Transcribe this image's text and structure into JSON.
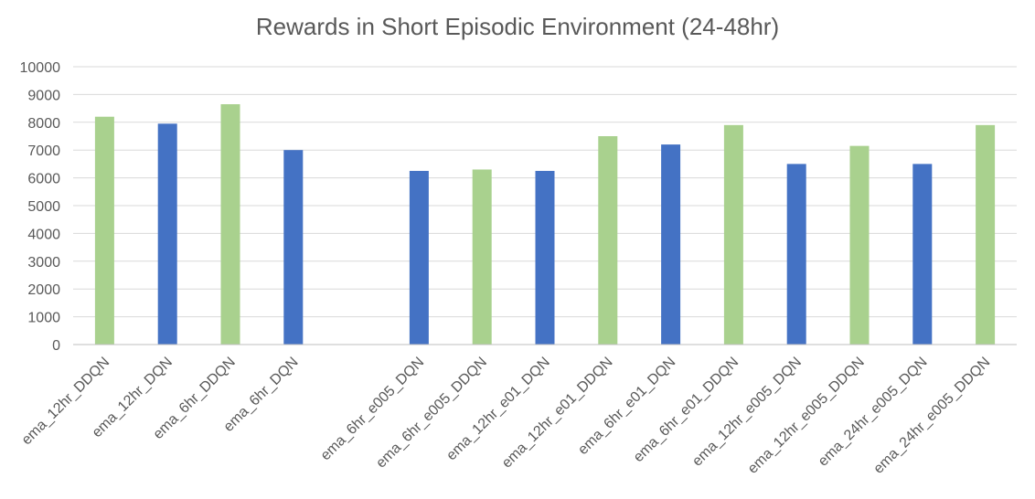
{
  "chart_data": {
    "type": "bar",
    "title": "Rewards in Short Episodic Environment (24-48hr)",
    "xlabel": "",
    "ylabel": "",
    "ylim": [
      0,
      10000
    ],
    "yticks": [
      0,
      1000,
      2000,
      3000,
      4000,
      5000,
      6000,
      7000,
      8000,
      9000,
      10000
    ],
    "grid": true,
    "legend": "none",
    "categories": [
      "ema_12hr_DDQN",
      "ema_12hr_DQN",
      "ema_6hr_DDQN",
      "ema_6hr_DQN",
      "",
      "ema_6hr_e005_DQN",
      "ema_6hr_e005_DDQN",
      "ema_12hr_e01_DQN",
      "ema_12hr_e01_DDQN",
      "ema_6hr_e01_DQN",
      "ema_6hr_e01_DDQN",
      "ema_12hr_e005_DQN",
      "ema_12hr_e005_DDQN",
      "ema_24hr_e005_DQN",
      "ema_24hr_e005_DDQN"
    ],
    "values": [
      8200,
      7950,
      8650,
      7000,
      null,
      6250,
      6300,
      6250,
      7500,
      7200,
      7900,
      6500,
      7150,
      6500,
      7900
    ],
    "colors": [
      "#a9d18e",
      "#4472c4",
      "#a9d18e",
      "#4472c4",
      null,
      "#4472c4",
      "#a9d18e",
      "#4472c4",
      "#a9d18e",
      "#4472c4",
      "#a9d18e",
      "#4472c4",
      "#a9d18e",
      "#4472c4",
      "#a9d18e"
    ]
  }
}
